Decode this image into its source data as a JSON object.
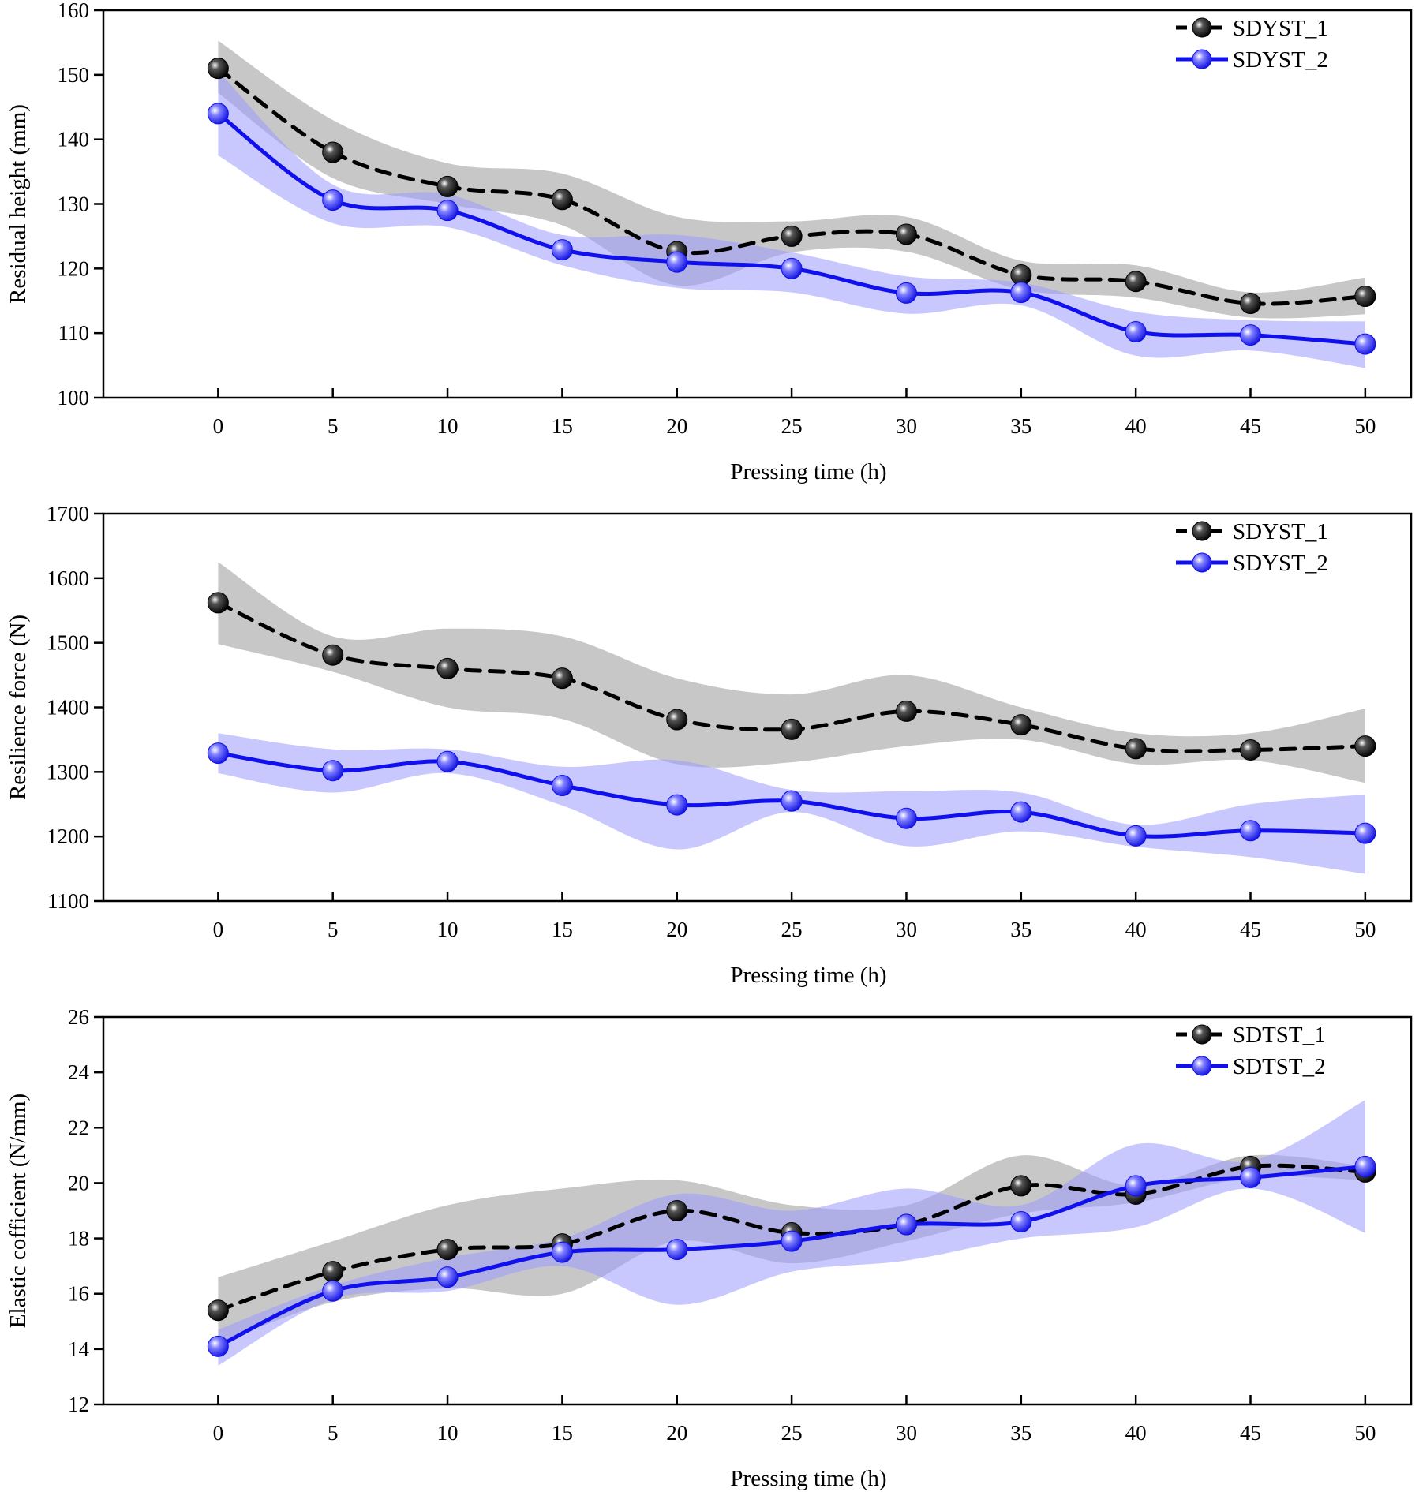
{
  "colors": {
    "series1_line": "#000000",
    "series1_band": "#b4b4b4",
    "series2_line": "#1010ee",
    "series2_band": "#9a9aff",
    "axis": "#000000"
  },
  "chart_data": [
    {
      "type": "line",
      "xlabel": "Pressing time (h)",
      "ylabel": "Residual height (mm)",
      "x": [
        0,
        5,
        10,
        15,
        20,
        25,
        30,
        35,
        40,
        45,
        50
      ],
      "xticks": [
        "0",
        "5",
        "10",
        "15",
        "20",
        "25",
        "30",
        "35",
        "40",
        "45",
        "50"
      ],
      "xlim": [
        -5,
        52
      ],
      "ylim": [
        100,
        160
      ],
      "yticks": [
        "100",
        "110",
        "120",
        "130",
        "140",
        "150",
        "160"
      ],
      "legend_position": "top-right",
      "series": [
        {
          "name": "SDYST_1",
          "style": "dashed-black-spheres",
          "values": [
            151.0,
            138.0,
            132.7,
            130.7,
            122.6,
            125.0,
            125.3,
            119.0,
            118.0,
            114.6,
            115.7
          ],
          "band_upper": [
            155.3,
            143.0,
            136.3,
            134.7,
            128.0,
            127.3,
            128.0,
            121.2,
            120.5,
            116.3,
            118.6
          ],
          "band_lower": [
            147.2,
            134.0,
            130.0,
            126.7,
            117.4,
            122.5,
            122.6,
            116.7,
            115.5,
            112.4,
            112.9
          ]
        },
        {
          "name": "SDYST_2",
          "style": "solid-blue-spheres",
          "values": [
            144.0,
            130.6,
            129.0,
            122.9,
            121.0,
            120.0,
            116.2,
            116.3,
            110.2,
            109.7,
            108.3
          ],
          "band_upper": [
            150.6,
            133.0,
            131.5,
            125.2,
            125.2,
            122.5,
            118.8,
            117.8,
            113.3,
            112.0,
            111.8
          ],
          "band_lower": [
            137.5,
            127.0,
            126.4,
            120.5,
            117.0,
            116.3,
            113.0,
            114.3,
            106.5,
            107.3,
            104.6
          ]
        }
      ]
    },
    {
      "type": "line",
      "xlabel": "Pressing time (h)",
      "ylabel": "Resilience force (N)",
      "x": [
        0,
        5,
        10,
        15,
        20,
        25,
        30,
        35,
        40,
        45,
        50
      ],
      "xticks": [
        "0",
        "5",
        "10",
        "15",
        "20",
        "25",
        "30",
        "35",
        "40",
        "45",
        "50"
      ],
      "xlim": [
        -5,
        52
      ],
      "ylim": [
        1100,
        1700
      ],
      "yticks": [
        "1100",
        "1200",
        "1300",
        "1400",
        "1500",
        "1600",
        "1700"
      ],
      "legend_position": "top-right",
      "series": [
        {
          "name": "SDYST_1",
          "style": "dashed-black-spheres",
          "values": [
            1562,
            1481,
            1460,
            1445,
            1381,
            1366,
            1394,
            1373,
            1336,
            1334,
            1340
          ],
          "band_upper": [
            1625,
            1510,
            1522,
            1510,
            1445,
            1420,
            1450,
            1400,
            1360,
            1360,
            1398
          ],
          "band_lower": [
            1498,
            1455,
            1400,
            1382,
            1312,
            1315,
            1340,
            1350,
            1312,
            1318,
            1283
          ]
        },
        {
          "name": "SDYST_2",
          "style": "solid-blue-spheres",
          "values": [
            1329,
            1302,
            1316,
            1279,
            1249,
            1255,
            1228,
            1238,
            1201,
            1209,
            1205
          ],
          "band_upper": [
            1360,
            1335,
            1335,
            1308,
            1318,
            1272,
            1270,
            1268,
            1218,
            1250,
            1265
          ],
          "band_lower": [
            1298,
            1268,
            1298,
            1248,
            1180,
            1238,
            1185,
            1208,
            1184,
            1168,
            1142
          ]
        }
      ]
    },
    {
      "type": "line",
      "xlabel": "Pressing time (h)",
      "ylabel": "Elastic cofficient (N/mm)",
      "x": [
        0,
        5,
        10,
        15,
        20,
        25,
        30,
        35,
        40,
        45,
        50
      ],
      "xticks": [
        "0",
        "5",
        "10",
        "15",
        "20",
        "25",
        "30",
        "35",
        "40",
        "45",
        "50"
      ],
      "xlim": [
        -5,
        52
      ],
      "ylim": [
        12,
        26
      ],
      "yticks": [
        "12",
        "14",
        "16",
        "18",
        "20",
        "22",
        "24",
        "26"
      ],
      "legend_position": "top-right",
      "series": [
        {
          "name": "SDTST_1",
          "style": "dashed-black-spheres",
          "values": [
            15.4,
            16.8,
            17.6,
            17.8,
            19.0,
            18.2,
            18.5,
            19.9,
            19.6,
            20.6,
            20.4
          ],
          "band_upper": [
            16.6,
            17.9,
            19.2,
            19.8,
            20.1,
            19.2,
            19.2,
            21.0,
            19.9,
            21.0,
            20.6
          ],
          "band_lower": [
            14.2,
            15.7,
            16.2,
            16.0,
            17.9,
            17.1,
            17.9,
            18.9,
            19.3,
            20.2,
            20.1
          ]
        },
        {
          "name": "SDTST_2",
          "style": "solid-blue-spheres",
          "values": [
            14.1,
            16.1,
            16.6,
            17.5,
            17.6,
            17.9,
            18.5,
            18.6,
            19.9,
            20.2,
            20.6
          ],
          "band_upper": [
            14.7,
            16.3,
            17.3,
            18.0,
            19.6,
            19.0,
            19.8,
            19.2,
            21.4,
            20.8,
            23.0
          ],
          "band_lower": [
            13.4,
            15.8,
            16.1,
            17.0,
            15.6,
            16.8,
            17.2,
            18.0,
            18.4,
            19.8,
            18.2
          ]
        }
      ]
    }
  ]
}
